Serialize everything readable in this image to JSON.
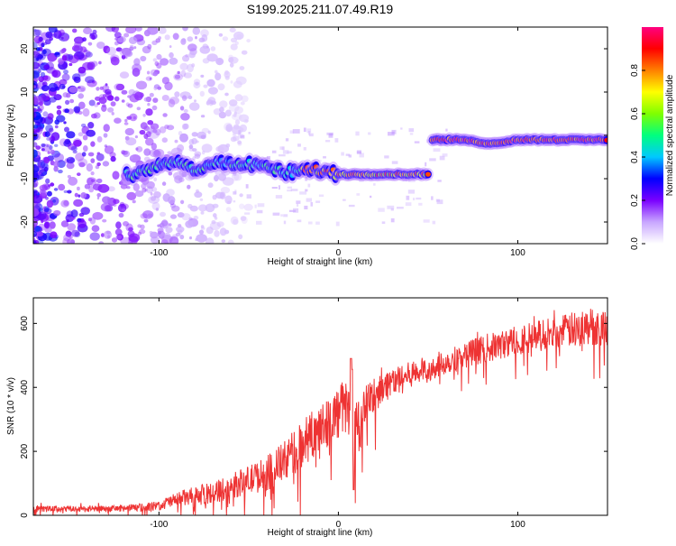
{
  "page_title": "S199.2025.211.07.49.R19",
  "chart_data": [
    {
      "type": "heatmap",
      "title": "S199.2025.211.07.49.R19",
      "xlabel": "Height of straight line (km)",
      "ylabel": "Frequency (Hz)",
      "xlim": [
        -170,
        150
      ],
      "ylim": [
        -25,
        25
      ],
      "x_ticks": [
        -100,
        0,
        100
      ],
      "y_ticks": [
        -20,
        -10,
        0,
        10,
        20
      ],
      "x_tick_labels": [
        "-100",
        "0",
        "100"
      ],
      "y_tick_labels": [
        "-20",
        "-10",
        "0",
        "10",
        "20"
      ],
      "colorbar": {
        "label": "Normalized spectral amplitude",
        "range": [
          0,
          1
        ],
        "ticks": [
          0.0,
          0.2,
          0.4,
          0.6,
          0.8
        ],
        "tick_labels": [
          "0.0",
          "0.2",
          "0.4",
          "0.6",
          "0.8"
        ],
        "colors": [
          "#ffffff",
          "#c8a6ff",
          "#7a00ff",
          "#0000ff",
          "#00c8ff",
          "#00ff7f",
          "#7fff00",
          "#ffff00",
          "#ff8000",
          "#ff0000",
          "#ff0080"
        ]
      },
      "ridge": [
        {
          "x": -115,
          "y": -9
        },
        {
          "x": -105,
          "y": -8
        },
        {
          "x": -90,
          "y": -6
        },
        {
          "x": -80,
          "y": -8
        },
        {
          "x": -65,
          "y": -6
        },
        {
          "x": -50,
          "y": -7
        },
        {
          "x": -40,
          "y": -7
        },
        {
          "x": -30,
          "y": -9
        },
        {
          "x": -20,
          "y": -8
        },
        {
          "x": -10,
          "y": -8
        },
        {
          "x": 0,
          "y": -9
        },
        {
          "x": 10,
          "y": -9
        },
        {
          "x": 30,
          "y": -9
        },
        {
          "x": 50,
          "y": -9
        },
        {
          "x": 52,
          "y": -1
        },
        {
          "x": 70,
          "y": -1
        },
        {
          "x": 85,
          "y": -2
        },
        {
          "x": 100,
          "y": -1
        },
        {
          "x": 130,
          "y": -1
        },
        {
          "x": 150,
          "y": -1
        }
      ]
    },
    {
      "type": "line",
      "xlabel": "Height of straight line (km)",
      "ylabel": "SNR (10 * v/v)",
      "xlim": [
        -170,
        150
      ],
      "ylim": [
        0,
        680
      ],
      "x_ticks": [
        -100,
        0,
        100
      ],
      "y_ticks": [
        0,
        200,
        400,
        600
      ],
      "x_tick_labels": [
        "-100",
        "0",
        "100"
      ],
      "y_tick_labels": [
        "0",
        "200",
        "400",
        "600"
      ],
      "color": "#ee3333",
      "x": [
        -170,
        -150,
        -130,
        -110,
        -100,
        -90,
        -80,
        -70,
        -60,
        -50,
        -40,
        -30,
        -20,
        -10,
        0,
        5,
        10,
        15,
        20,
        30,
        40,
        50,
        60,
        70,
        80,
        90,
        100,
        110,
        120,
        130,
        140,
        150
      ],
      "y": [
        20,
        20,
        20,
        25,
        30,
        50,
        60,
        70,
        90,
        110,
        130,
        170,
        220,
        280,
        320,
        340,
        260,
        330,
        380,
        420,
        440,
        460,
        480,
        500,
        520,
        530,
        550,
        560,
        570,
        580,
        590,
        590
      ],
      "noise_amplitude": [
        10,
        10,
        10,
        12,
        15,
        25,
        30,
        35,
        40,
        45,
        55,
        65,
        75,
        80,
        85,
        90,
        85,
        75,
        60,
        45,
        40,
        40,
        40,
        40,
        45,
        45,
        45,
        50,
        50,
        55,
        60,
        60
      ]
    }
  ]
}
